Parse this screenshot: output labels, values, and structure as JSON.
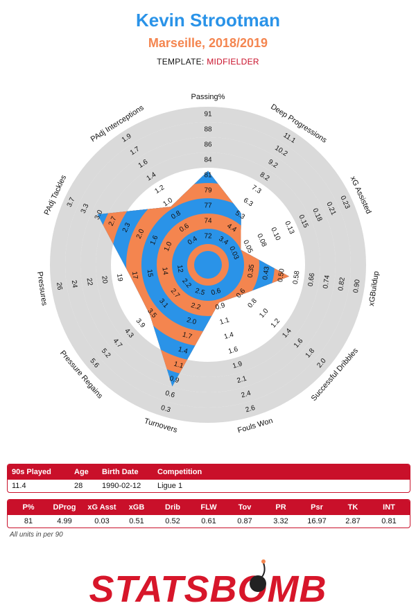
{
  "header": {
    "player": "Kevin Strootman",
    "team_season": "Marseille, 2018/2019",
    "template_label": "TEMPLATE:",
    "template_value": "MIDFIELDER"
  },
  "chart_data": {
    "type": "radar",
    "colors": {
      "blue": "#2a93e8",
      "orange": "#f4854f",
      "ring": "#dadada"
    },
    "axes": [
      {
        "label": "Passing%",
        "ticks": [
          "72",
          "74",
          "77",
          "79",
          "81",
          "84",
          "86",
          "88",
          "91"
        ],
        "value": 81,
        "min": 69.6,
        "max": 91
      },
      {
        "label": "Deep Progressions",
        "ticks": [
          "3.4",
          "4.4",
          "5.3",
          "6.3",
          "7.3",
          "8.2",
          "9.2",
          "10.2",
          "11.1"
        ],
        "value": 4.99,
        "min": 2.44,
        "max": 11.1
      },
      {
        "label": "xG Assisted",
        "ticks": [
          "0.03",
          "0.05",
          "0.08",
          "0.10",
          "0.13",
          "0.15",
          "0.18",
          "0.21",
          "0.23"
        ],
        "value": 0.03,
        "min": 0.005,
        "max": 0.23
      },
      {
        "label": "xGBuildup",
        "ticks": [
          "0.35",
          "0.43",
          "0.50",
          "0.58",
          "0.66",
          "0.74",
          "0.82",
          "0.90"
        ],
        "value": 0.51,
        "min": 0.196,
        "max": 0.9
      },
      {
        "label": "Successful Dribbles",
        "ticks": [
          "0.6",
          "0.8",
          "1.0",
          "1.2",
          "1.4",
          "1.6",
          "1.8",
          "2.0"
        ],
        "value": 0.52,
        "min": 0.2,
        "max": 2.0
      },
      {
        "label": "Fouls Won",
        "ticks": [
          "0.6",
          "0.9",
          "1.1",
          "1.4",
          "1.6",
          "1.9",
          "2.1",
          "2.4",
          "2.6"
        ],
        "value": 0.61,
        "min": 0.3,
        "max": 2.6
      },
      {
        "label": "Turnovers",
        "ticks": [
          "2.5",
          "2.2",
          "2.0",
          "1.7",
          "1.4",
          "1.1",
          "0.9",
          "0.6",
          "0.3"
        ],
        "value": 0.87,
        "min": 2.8,
        "max": 0.3
      },
      {
        "label": "Pressure Regains",
        "ticks": [
          "2.2",
          "2.7",
          "3.1",
          "3.5",
          "3.9",
          "4.3",
          "4.7",
          "5.2",
          "5.6"
        ],
        "value": 3.32,
        "min": 1.75,
        "max": 5.6
      },
      {
        "label": "Pressures",
        "ticks": [
          "12",
          "14",
          "15",
          "17",
          "19",
          "20",
          "22",
          "24",
          "26"
        ],
        "value": 16.97,
        "min": 10.4,
        "max": 26
      },
      {
        "label": "PAdj Tackles",
        "ticks": [
          "1.0",
          "1.6",
          "2.0",
          "2.3",
          "2.7",
          "3.0",
          "3.3",
          "3.7"
        ],
        "value": 2.87,
        "min": 0.58,
        "max": 3.7
      },
      {
        "label": "PAdj Interceptions",
        "ticks": [
          "0.4",
          "0.6",
          "0.8",
          "1.0",
          "1.2",
          "1.4",
          "1.6",
          "1.7",
          "1.9"
        ],
        "value": 0.81,
        "min": 0.22,
        "max": 1.9
      }
    ]
  },
  "info_table": {
    "headers": [
      "90s Played",
      "Age",
      "Birth Date",
      "Competition"
    ],
    "values": [
      "11.4",
      "28",
      "1990-02-12",
      "Ligue 1"
    ]
  },
  "stats_table": {
    "headers": [
      "P%",
      "DProg",
      "xG Asst",
      "xGB",
      "Drib",
      "FLW",
      "Tov",
      "PR",
      "Psr",
      "TK",
      "INT"
    ],
    "values": [
      "81",
      "4.99",
      "0.03",
      "0.51",
      "0.52",
      "0.61",
      "0.87",
      "3.32",
      "16.97",
      "2.87",
      "0.81"
    ]
  },
  "footnote": "All units in per 90",
  "logo": {
    "text": "STATSBOMB",
    "color": "#d7162a"
  }
}
